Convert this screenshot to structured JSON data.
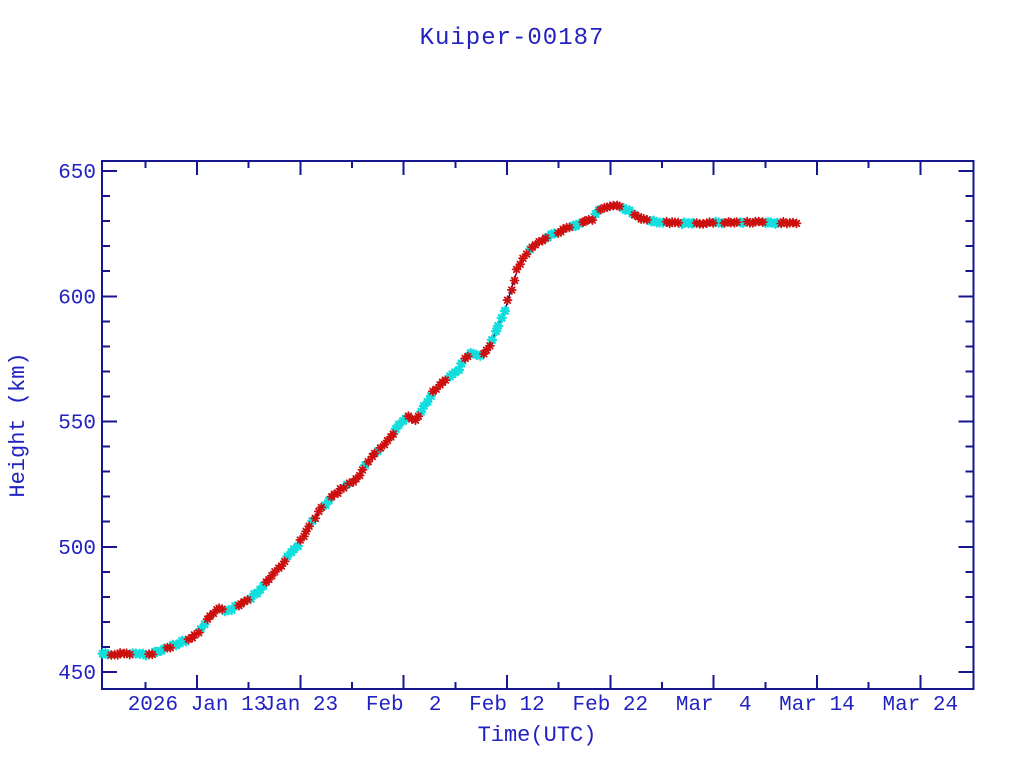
{
  "window": {
    "background": "#ffffff"
  },
  "chart_data": {
    "type": "line",
    "title": "Kuiper-00187",
    "xlabel": "Time(UTC)",
    "ylabel": "Height (km)",
    "x_definition": "days since first major tick (2026 Jan 13, 00:00 UTC)",
    "x_range_days": [
      -9.2,
      75.1
    ],
    "ylim": [
      443,
      654
    ],
    "y_major_ticks": [
      450,
      500,
      550,
      600,
      650
    ],
    "y_minor_ticks": [
      460,
      470,
      480,
      490,
      510,
      520,
      530,
      540,
      560,
      570,
      580,
      590,
      610,
      620,
      630,
      640
    ],
    "x_major_ticks": [
      {
        "t": 0,
        "label": "2026 Jan 13"
      },
      {
        "t": 10,
        "label": "Jan 23"
      },
      {
        "t": 20,
        "label": "Feb  2"
      },
      {
        "t": 30,
        "label": "Feb 12"
      },
      {
        "t": 40,
        "label": "Feb 22"
      },
      {
        "t": 50,
        "label": "Mar  4"
      },
      {
        "t": 60,
        "label": "Mar 14"
      },
      {
        "t": 70,
        "label": "Mar 24"
      }
    ],
    "x_minor_ticks": [
      -5,
      5,
      15,
      25,
      35,
      45,
      55,
      65
    ],
    "grid": "off",
    "legend": "none",
    "marker_style": "asterisk, dense alternating red/cyan clusters over thin navy line",
    "marker_sample_step_days": 0.3,
    "series": [
      {
        "name": "height",
        "points": [
          [
            -9.2,
            457.3
          ],
          [
            -7.5,
            457.2
          ],
          [
            -6.0,
            457.1
          ],
          [
            -5.0,
            457.0
          ],
          [
            -4.0,
            457.8
          ],
          [
            -3.0,
            459.3
          ],
          [
            -2.0,
            461.0
          ],
          [
            -1.2,
            462.5
          ],
          [
            -0.6,
            463.3
          ],
          [
            -0.2,
            464.5
          ],
          [
            0.4,
            467.0
          ],
          [
            0.8,
            470.0
          ],
          [
            1.3,
            472.5
          ],
          [
            1.9,
            474.8
          ],
          [
            2.4,
            475.4
          ],
          [
            2.8,
            473.8
          ],
          [
            3.3,
            475.0
          ],
          [
            4.0,
            476.5
          ],
          [
            4.8,
            478.3
          ],
          [
            5.8,
            481.7
          ],
          [
            6.7,
            485.7
          ],
          [
            7.7,
            490.3
          ],
          [
            8.4,
            493.7
          ],
          [
            9.3,
            498.5
          ],
          [
            10.2,
            503.5
          ],
          [
            10.9,
            508.0
          ],
          [
            11.9,
            514.4
          ],
          [
            12.9,
            519.7
          ],
          [
            13.8,
            522.4
          ],
          [
            14.5,
            524.8
          ],
          [
            15.1,
            525.6
          ],
          [
            15.9,
            530.0
          ],
          [
            16.9,
            535.8
          ],
          [
            17.9,
            539.8
          ],
          [
            18.9,
            544.8
          ],
          [
            19.4,
            547.2
          ],
          [
            20.1,
            551.3
          ],
          [
            20.6,
            552.4
          ],
          [
            21.1,
            550.2
          ],
          [
            21.7,
            553.5
          ],
          [
            22.2,
            557.5
          ],
          [
            22.7,
            560.8
          ],
          [
            23.4,
            564.0
          ],
          [
            24.4,
            567.7
          ],
          [
            25.2,
            570.0
          ],
          [
            25.8,
            574.5
          ],
          [
            26.3,
            576.8
          ],
          [
            26.9,
            577.3
          ],
          [
            27.3,
            575.6
          ],
          [
            27.9,
            577.5
          ],
          [
            28.5,
            582.0
          ],
          [
            29.1,
            587.5
          ],
          [
            29.7,
            593.0
          ],
          [
            30.1,
            598.5
          ],
          [
            30.4,
            602.5
          ],
          [
            30.7,
            606.5
          ],
          [
            31.0,
            610.3
          ],
          [
            31.4,
            613.5
          ],
          [
            31.7,
            616.3
          ],
          [
            32.1,
            618.0
          ],
          [
            32.7,
            620.4
          ],
          [
            33.3,
            622.3
          ],
          [
            34.2,
            624.2
          ],
          [
            35.3,
            626.3
          ],
          [
            36.5,
            628.0
          ],
          [
            37.5,
            629.5
          ],
          [
            38.2,
            630.8
          ],
          [
            38.5,
            633.2
          ],
          [
            39.0,
            635.0
          ],
          [
            40.0,
            636.0
          ],
          [
            41.0,
            635.7
          ],
          [
            41.8,
            634.0
          ],
          [
            42.5,
            632.2
          ],
          [
            43.2,
            630.6
          ],
          [
            44.0,
            629.8
          ],
          [
            45.0,
            629.4
          ],
          [
            48.0,
            629.3
          ],
          [
            52.0,
            629.3
          ],
          [
            55.0,
            629.4
          ],
          [
            58.0,
            629.3
          ]
        ]
      }
    ],
    "colors": {
      "text": "#2222c2",
      "axis": "#16168e",
      "line": "#00006a",
      "marker_red": "#cc0f0f",
      "marker_cyan": "#12dede",
      "background": "#ffffff"
    }
  }
}
